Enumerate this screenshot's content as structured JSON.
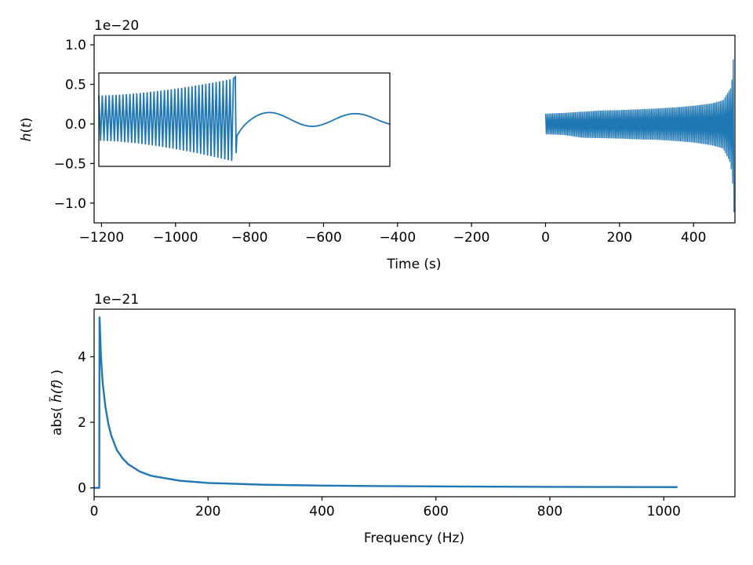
{
  "chart_data": [
    {
      "type": "line",
      "ylabel": "h(t)",
      "ylabel_parts": {
        "base": "h",
        "open": "(",
        "var": "t",
        "close": ")"
      },
      "xlabel": "Time (s)",
      "offset_text": "1e−20",
      "xlim": [
        -1220,
        512
      ],
      "ylim": [
        -1.25,
        1.12
      ],
      "xticks": [
        -1200,
        -1000,
        -800,
        -600,
        -400,
        -200,
        0,
        200,
        400
      ],
      "xtick_labels": [
        "−1200",
        "−1000",
        "−800",
        "−600",
        "−400",
        "−200",
        "0",
        "200",
        "400"
      ],
      "yticks": [
        -1.0,
        -0.5,
        0.0,
        0.5,
        1.0
      ],
      "ytick_labels": [
        "−1.0",
        "−0.5",
        "0.0",
        "0.5",
        "1.0"
      ],
      "series": [
        {
          "color": "#1f77b4",
          "description_of_shape": "dense oscillation starting at t=0, envelope growing from about ±0.13 to ±1.0 near t=510",
          "x": [
            0,
            50,
            100,
            150,
            200,
            250,
            300,
            350,
            400,
            450,
            480,
            500,
            505,
            510
          ],
          "envelope_upper": [
            0.13,
            0.14,
            0.155,
            0.17,
            0.175,
            0.185,
            0.195,
            0.21,
            0.23,
            0.26,
            0.3,
            0.45,
            0.6,
            1.03
          ],
          "envelope_lower": [
            -0.13,
            -0.14,
            -0.175,
            -0.18,
            -0.185,
            -0.195,
            -0.2,
            -0.215,
            -0.235,
            -0.27,
            -0.31,
            -0.5,
            -0.7,
            -1.17
          ]
        }
      ],
      "inset": {
        "description_of_shape": "zoom on merger: chirp oscillations ending in a spike, followed by a slow damped oscillation",
        "ylim": [
          -0.55,
          0.65
        ]
      },
      "grid": false
    },
    {
      "type": "line",
      "ylabel": "abs( h̃(f) )",
      "ylabel_parts": {
        "prefix": "abs( ",
        "var": "h̃(f)",
        "suffix": " )"
      },
      "xlabel": "Frequency (Hz)",
      "offset_text": "1e−21",
      "xlim": [
        0,
        1125
      ],
      "ylim": [
        -0.27,
        5.45
      ],
      "xticks": [
        0,
        200,
        400,
        600,
        800,
        1000
      ],
      "xtick_labels": [
        "0",
        "200",
        "400",
        "600",
        "800",
        "1000"
      ],
      "yticks": [
        0,
        2,
        4
      ],
      "ytick_labels": [
        "0",
        "2",
        "4"
      ],
      "series": [
        {
          "color": "#1f77b4",
          "x": [
            0,
            8.9,
            9,
            9.5,
            10,
            12,
            15,
            20,
            25,
            30,
            40,
            50,
            60,
            80,
            100,
            150,
            200,
            300,
            400,
            500,
            600,
            700,
            800,
            900,
            1000,
            1024
          ],
          "y": [
            0,
            0,
            0,
            5.2,
            5.0,
            4.0,
            3.2,
            2.45,
            1.95,
            1.6,
            1.15,
            0.9,
            0.72,
            0.5,
            0.37,
            0.22,
            0.15,
            0.095,
            0.07,
            0.055,
            0.045,
            0.037,
            0.031,
            0.027,
            0.024,
            0.023
          ]
        }
      ],
      "grid": false
    }
  ]
}
